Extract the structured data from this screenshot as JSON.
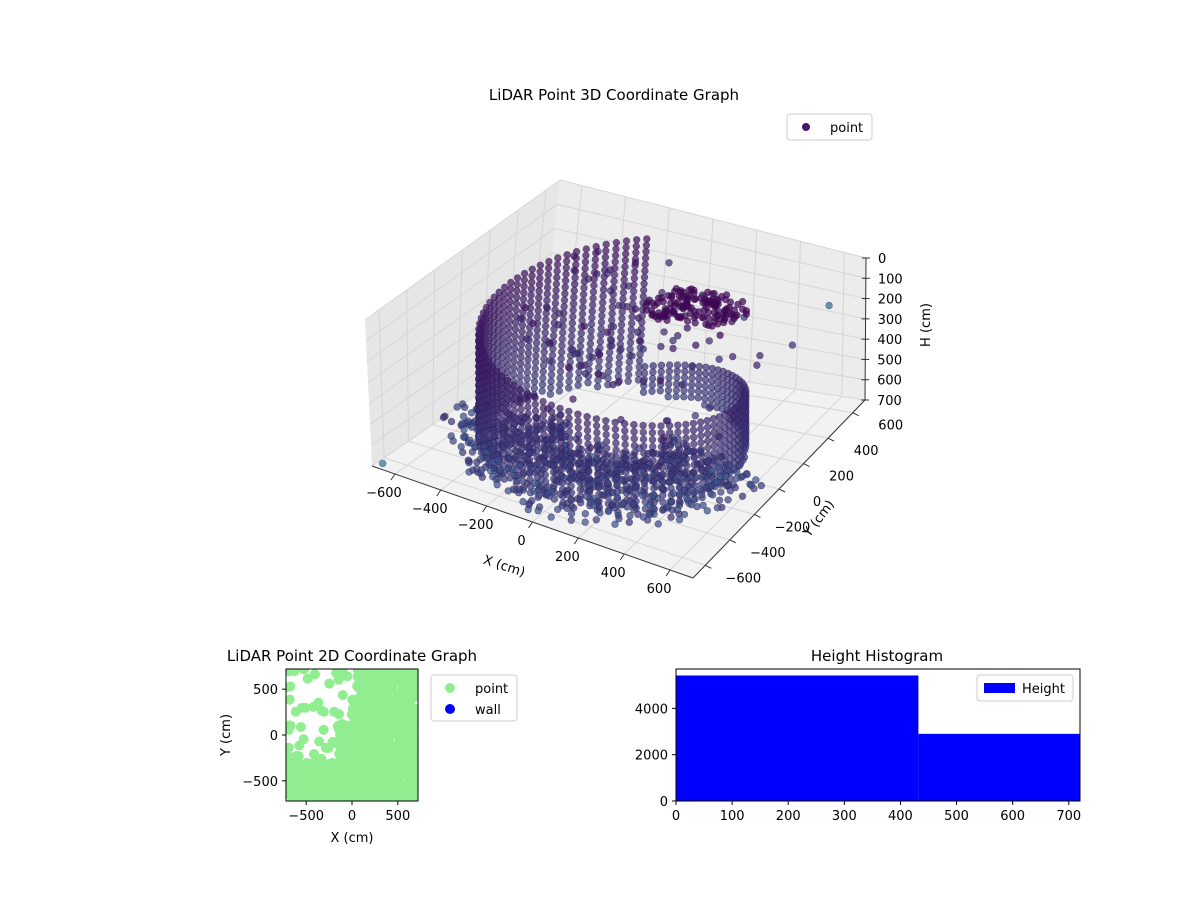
{
  "chart_data": [
    {
      "type": "scatter3d",
      "title": "LiDAR Point 3D Coordinate Graph",
      "xlabel": "X (cm)",
      "ylabel": "Y (cm)",
      "zlabel": "H (cm)",
      "xlim": [
        -700,
        700
      ],
      "ylim": [
        -700,
        700
      ],
      "zlim": [
        0,
        700
      ],
      "z_inverted": true,
      "xticks": [
        "−600",
        "−400",
        "−200",
        "0",
        "200",
        "400",
        "600"
      ],
      "yticks": [
        "−600",
        "−400",
        "−200",
        "0",
        "200",
        "400",
        "600"
      ],
      "zticks": [
        "0",
        "100",
        "200",
        "300",
        "400",
        "500",
        "600",
        "700"
      ],
      "grid": true,
      "legend": {
        "placement": "top-right",
        "entries": [
          {
            "name": "point",
            "color": "#46176a"
          }
        ]
      },
      "colormap": "viridis",
      "series": [
        {
          "name": "point",
          "description_points": [
            {
              "x": -450,
              "y": 550,
              "z": 300
            },
            {
              "x": -300,
              "y": 600,
              "z": 320
            },
            {
              "x": 600,
              "y": 300,
              "z": 250
            },
            {
              "x": -600,
              "y": -300,
              "z": 600
            },
            {
              "x": -550,
              "y": -250,
              "z": 640
            },
            {
              "x": 400,
              "y": -650,
              "z": 600
            },
            {
              "x": 500,
              "y": -500,
              "z": 620
            },
            {
              "x": 650,
              "y": -200,
              "z": 640
            },
            {
              "x": -700,
              "y": -100,
              "z": 700
            }
          ]
        }
      ]
    },
    {
      "type": "scatter",
      "title": "LiDAR Point 2D Coordinate Graph",
      "xlabel": "X (cm)",
      "ylabel": "Y (cm)",
      "xlim": [
        -720,
        720
      ],
      "ylim": [
        -720,
        720
      ],
      "xticks": [
        "−500",
        "0",
        "500"
      ],
      "yticks": [
        "−500",
        "0",
        "500"
      ],
      "legend": {
        "placement": "outside-right",
        "entries": [
          {
            "name": "point",
            "color": "#90ee90"
          },
          {
            "name": "wall",
            "color": "#0000ff"
          }
        ]
      }
    },
    {
      "type": "bar",
      "title": "Height Histogram",
      "xlim": [
        0,
        720
      ],
      "ylim": [
        0,
        5700
      ],
      "xticks": [
        "0",
        "100",
        "200",
        "300",
        "400",
        "500",
        "600",
        "700"
      ],
      "yticks": [
        "0",
        "2000",
        "4000"
      ],
      "bins": [
        {
          "start": 0,
          "end": 432,
          "value": 5420
        },
        {
          "start": 432,
          "end": 720,
          "value": 2900
        }
      ],
      "color": "#0000ff",
      "legend": {
        "placement": "top-right",
        "entries": [
          {
            "name": "Height",
            "color": "#0000ff"
          }
        ]
      }
    }
  ]
}
